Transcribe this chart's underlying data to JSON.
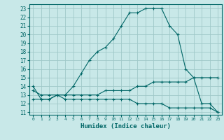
{
  "xlabel": "Humidex (Indice chaleur)",
  "bg_color": "#c8e8e8",
  "line_color": "#006666",
  "grid_color": "#a0c8c8",
  "xlim": [
    -0.5,
    23.5
  ],
  "ylim": [
    10.7,
    23.5
  ],
  "yticks": [
    11,
    12,
    13,
    14,
    15,
    16,
    17,
    18,
    19,
    20,
    21,
    22,
    23
  ],
  "xticks": [
    0,
    1,
    2,
    3,
    4,
    5,
    6,
    7,
    8,
    9,
    10,
    11,
    12,
    13,
    14,
    15,
    16,
    17,
    18,
    19,
    20,
    21,
    22,
    23
  ],
  "line1_x": [
    0,
    1,
    2,
    3,
    4,
    5,
    6,
    7,
    8,
    9,
    10,
    11,
    12,
    13,
    14,
    15,
    16,
    17,
    18,
    19,
    20,
    21,
    22,
    23
  ],
  "line1_y": [
    14,
    12.5,
    12.5,
    13,
    13,
    14,
    15.5,
    17,
    18,
    18.5,
    19.5,
    21,
    22.5,
    22.5,
    23,
    23,
    23,
    21,
    20,
    16,
    15,
    12,
    12,
    11
  ],
  "line2_x": [
    0,
    1,
    2,
    3,
    4,
    5,
    6,
    7,
    8,
    9,
    10,
    11,
    12,
    13,
    14,
    15,
    16,
    17,
    18,
    19,
    20,
    21,
    22,
    23
  ],
  "line2_y": [
    12.5,
    12.5,
    12.5,
    13,
    13,
    13,
    13,
    13,
    13,
    13.5,
    13.5,
    13.5,
    13.5,
    14,
    14,
    14.5,
    14.5,
    14.5,
    14.5,
    14.5,
    15,
    15,
    15,
    15
  ],
  "line3_x": [
    0,
    1,
    2,
    3,
    4,
    5,
    6,
    7,
    8,
    9,
    10,
    11,
    12,
    13,
    14,
    15,
    16,
    17,
    18,
    19,
    20,
    21,
    22,
    23
  ],
  "line3_y": [
    13.5,
    13,
    13,
    13,
    12.5,
    12.5,
    12.5,
    12.5,
    12.5,
    12.5,
    12.5,
    12.5,
    12.5,
    12,
    12,
    12,
    12,
    11.5,
    11.5,
    11.5,
    11.5,
    11.5,
    11.5,
    11
  ]
}
